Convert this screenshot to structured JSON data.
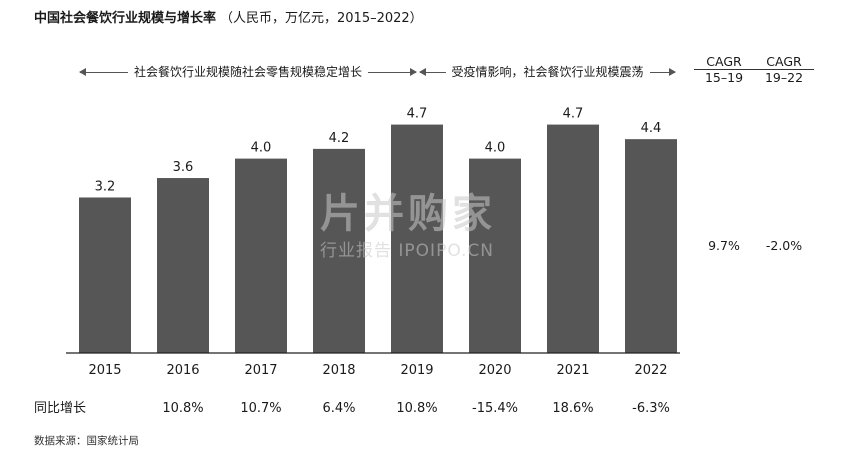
{
  "title": {
    "main": "中国社会餐饮行业规模与增长率",
    "sub": "（人民币，万亿元，2015–2022）"
  },
  "periods": [
    {
      "label": "社会餐饮行业规模随社会零售规模稳定增长"
    },
    {
      "label": "受疫情影响，社会餐饮行业规模震荡"
    }
  ],
  "cagr": {
    "headers": [
      {
        "top": "CAGR",
        "bottom": "15–19"
      },
      {
        "top": "CAGR",
        "bottom": "19–22"
      }
    ],
    "values": [
      "9.7%",
      "-2.0%"
    ]
  },
  "yoy_label": "同比增长",
  "source": "数据来源：国家统计局",
  "watermark": {
    "big": "片并购家",
    "small": "行业报告 IPOIPO.CN"
  },
  "chart_data": {
    "type": "bar",
    "title": "中国社会餐饮行业规模与增长率",
    "unit": "人民币，万亿元",
    "categories": [
      "2015",
      "2016",
      "2017",
      "2018",
      "2019",
      "2020",
      "2021",
      "2022"
    ],
    "values": [
      3.2,
      3.6,
      4.0,
      4.2,
      4.7,
      4.0,
      4.7,
      4.4
    ],
    "value_labels": [
      "3.2",
      "3.6",
      "4.0",
      "4.2",
      "4.7",
      "4.0",
      "4.7",
      "4.4"
    ],
    "yoy_growth": [
      "",
      "10.8%",
      "10.7%",
      "6.4%",
      "10.8%",
      "-15.4%",
      "18.6%",
      "-6.3%"
    ],
    "ylim": [
      0,
      5.0
    ],
    "grid": false,
    "bar_color": "#565656"
  }
}
